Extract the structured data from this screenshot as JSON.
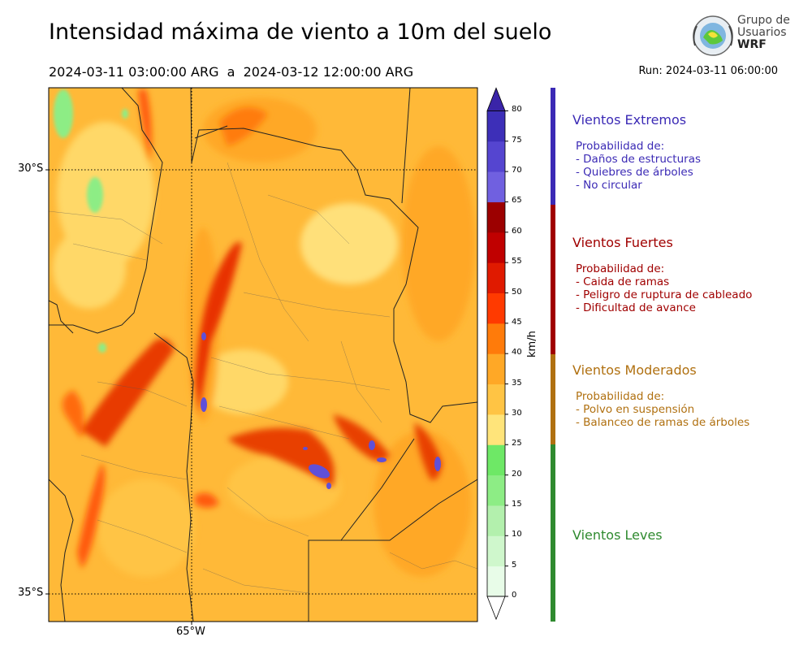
{
  "header": {
    "title": "Intensidad máxima de viento a 10m del suelo",
    "period": "2024-03-11 03:00:00 ARG  a  2024-03-12 12:00:00 ARG",
    "run": "Run: 2024-03-11 06:00:00"
  },
  "logo": {
    "line1": "Grupo de",
    "line2": "Usuarios",
    "line3": "WRF"
  },
  "map": {
    "lat_labels": [
      "30°S",
      "35°S"
    ],
    "lon_labels": [
      "65°W"
    ]
  },
  "colorbar": {
    "unit": "km/h",
    "ticks": [
      "0",
      "5",
      "10",
      "15",
      "20",
      "25",
      "30",
      "35",
      "40",
      "45",
      "50",
      "55",
      "60",
      "65",
      "70",
      "75",
      "80"
    ],
    "colors": [
      "#e8fce8",
      "#cff7cc",
      "#b3f0ad",
      "#8ded85",
      "#6ee866",
      "#ffe47a",
      "#ffc444",
      "#ffa826",
      "#ff7b0a",
      "#ff3a00",
      "#e01a00",
      "#c00000",
      "#9c0000",
      "#7060e0",
      "#5545d0",
      "#3d2fb8"
    ],
    "extend_max_color": "#3a24a8"
  },
  "categories": [
    {
      "title": "Vientos Extremos",
      "color": "#3b2ab5",
      "lines": [
        "Probabilidad de:",
        "- Daños de estructuras",
        "- Quiebres de árboles",
        "- No circular"
      ]
    },
    {
      "title": "Vientos Fuertes",
      "color": "#a00000",
      "lines": [
        "Probabilidad de:",
        "- Caida de ramas",
        "- Peligro de ruptura de cableado",
        "- Dificultad de avance"
      ]
    },
    {
      "title": "Vientos Moderados",
      "color": "#b07010",
      "lines": [
        "Probabilidad de:",
        "- Polvo en suspensión",
        "- Balanceo de ramas de árboles"
      ]
    },
    {
      "title": "Vientos Leves",
      "color": "#2f8a2f",
      "lines": []
    }
  ]
}
